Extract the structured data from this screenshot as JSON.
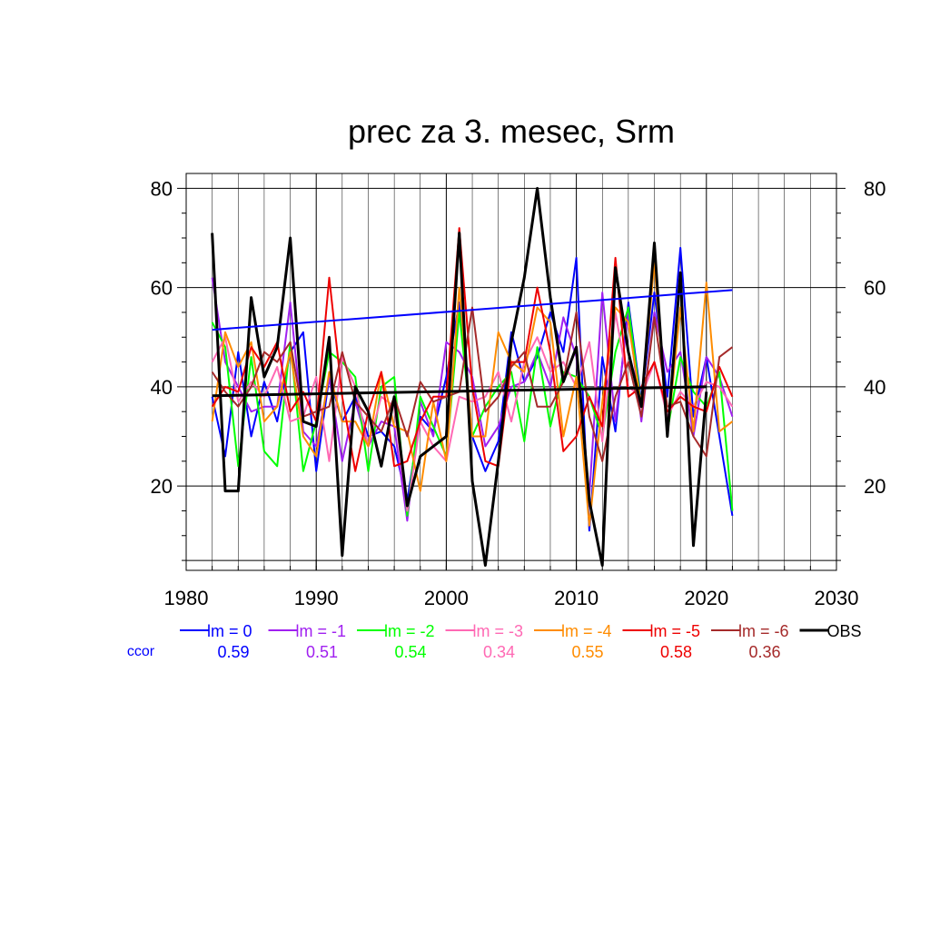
{
  "chart_data": {
    "type": "line",
    "title": "prec za 3. mesec, Srm",
    "xlabel": "",
    "ylabel": "",
    "xlim": [
      1980,
      2030
    ],
    "ylim": [
      3,
      83
    ],
    "x_ticks": [
      1980,
      1990,
      2000,
      2010,
      2020,
      2030
    ],
    "y_ticks": [
      20,
      40,
      60,
      80
    ],
    "grid": true,
    "legend_position": "bottom",
    "ccor_label": "ccor",
    "x": [
      1982,
      1983,
      1984,
      1985,
      1986,
      1987,
      1988,
      1989,
      1990,
      1991,
      1992,
      1993,
      1994,
      1995,
      1996,
      1997,
      1998,
      1999,
      2000,
      2001,
      2002,
      2003,
      2004,
      2005,
      2006,
      2007,
      2008,
      2009,
      2010,
      2011,
      2012,
      2013,
      2014,
      2015,
      2016,
      2017,
      2018,
      2019,
      2020,
      2021,
      2022
    ],
    "series": [
      {
        "name": "lm = 0",
        "color": "#0000ff",
        "ccor": "0.59",
        "values": [
          38,
          26,
          47,
          30,
          41,
          33,
          47,
          51,
          23,
          42,
          33,
          38,
          30,
          31,
          28,
          17,
          34,
          31,
          42,
          57,
          30,
          23,
          29,
          51,
          41,
          46,
          55,
          47,
          66,
          11,
          46,
          31,
          57,
          37,
          59,
          38,
          68,
          34,
          46,
          30,
          14
        ],
        "trend": [
          51.5,
          59.5
        ]
      },
      {
        "name": "lm = -1",
        "color": "#a020f0",
        "ccor": "0.51",
        "values": [
          62,
          45,
          40,
          35,
          36,
          36,
          57,
          31,
          28,
          42,
          25,
          37,
          28,
          33,
          32,
          13,
          37,
          30,
          49,
          47,
          42,
          28,
          32,
          40,
          41,
          47,
          40,
          54,
          46,
          18,
          59,
          33,
          55,
          33,
          55,
          43,
          47,
          30,
          46,
          42,
          34
        ]
      },
      {
        "name": "lm = -2",
        "color": "#00ff00",
        "ccor": "0.54",
        "values": [
          53,
          48,
          24,
          46,
          27,
          24,
          49,
          23,
          33,
          47,
          45,
          42,
          23,
          40,
          42,
          14,
          38,
          32,
          26,
          55,
          30,
          36,
          40,
          43,
          29,
          48,
          32,
          43,
          42,
          38,
          30,
          47,
          56,
          36,
          67,
          31,
          46,
          39,
          36,
          43,
          15
        ]
      },
      {
        "name": "lm = -3",
        "color": "#ff69b4",
        "ccor": "0.34",
        "values": [
          45,
          50,
          37,
          41,
          38,
          44,
          33,
          34,
          42,
          25,
          46,
          40,
          28,
          38,
          36,
          15,
          33,
          28,
          25,
          38,
          37,
          38,
          43,
          33,
          45,
          50,
          43,
          45,
          40,
          49,
          29,
          55,
          40,
          38,
          45,
          34,
          39,
          36,
          41,
          40,
          36
        ]
      },
      {
        "name": "lm = -4",
        "color": "#ff8c00",
        "ccor": "0.55",
        "values": [
          33,
          51,
          44,
          49,
          33,
          36,
          47,
          30,
          26,
          43,
          33,
          33,
          28,
          43,
          32,
          31,
          19,
          37,
          25,
          60,
          30,
          30,
          51,
          45,
          43,
          56,
          53,
          30,
          42,
          12,
          37,
          56,
          53,
          36,
          65,
          30,
          56,
          31,
          61,
          31,
          33
        ]
      },
      {
        "name": "lm = -5",
        "color": "#ee0000",
        "ccor": "0.58",
        "values": [
          36,
          40,
          39,
          48,
          44,
          49,
          35,
          39,
          33,
          62,
          38,
          23,
          35,
          43,
          24,
          25,
          33,
          38,
          38,
          72,
          40,
          25,
          24,
          45,
          45,
          60,
          47,
          27,
          30,
          38,
          32,
          66,
          38,
          40,
          45,
          35,
          38,
          36,
          35,
          44,
          38
        ]
      },
      {
        "name": "lm = -6",
        "color": "#a52a2a",
        "ccor": "0.36",
        "values": [
          43,
          39,
          36,
          40,
          47,
          45,
          49,
          34,
          35,
          36,
          47,
          37,
          34,
          31,
          38,
          30,
          41,
          37,
          38,
          39,
          56,
          35,
          38,
          44,
          47,
          36,
          36,
          41,
          55,
          34,
          25,
          38,
          45,
          34,
          54,
          36,
          37,
          30,
          26,
          46,
          48
        ]
      },
      {
        "name": "OBS",
        "color": "#000000",
        "ccor": "",
        "values": [
          71,
          19,
          19,
          58,
          42,
          48,
          70,
          33,
          32,
          50,
          6,
          40,
          35,
          24,
          38,
          16,
          26,
          28,
          30,
          71,
          21,
          4,
          25,
          49,
          62,
          80,
          58,
          41,
          48,
          17,
          4,
          64,
          47,
          36,
          69,
          30,
          63,
          8,
          39,
          null,
          null
        ],
        "trend": [
          38.2,
          40.0
        ]
      }
    ]
  }
}
